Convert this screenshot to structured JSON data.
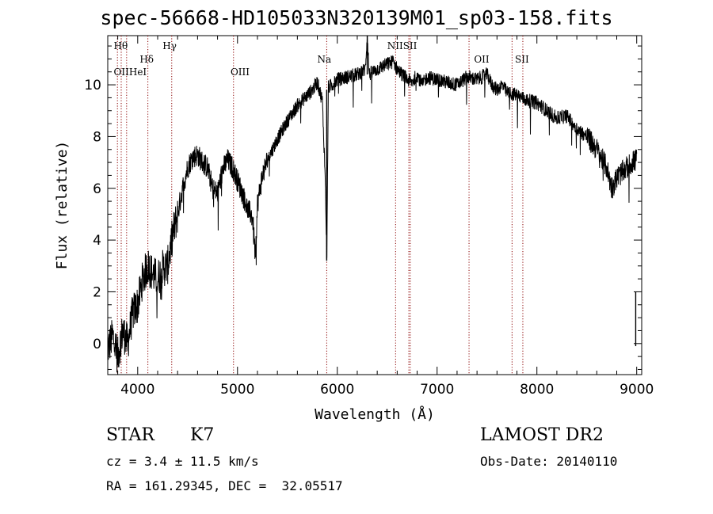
{
  "chart_data": {
    "type": "line",
    "title": "spec-56668-HD105033N320139M01_sp03-158.fits",
    "xlabel": "Wavelength (Å)",
    "ylabel": "Flux (relative)",
    "xlim": [
      3700,
      9050
    ],
    "ylim": [
      -1.2,
      11.9
    ],
    "x_ticks": [
      4000,
      5000,
      6000,
      7000,
      8000,
      9000
    ],
    "y_ticks": [
      0,
      2,
      4,
      6,
      8,
      10
    ],
    "grid": false,
    "series": [
      {
        "x": [
          3700,
          3750,
          3800,
          3850,
          3900,
          3950,
          4000,
          4050,
          4100,
          4150,
          4200,
          4250,
          4300,
          4350,
          4400,
          4450,
          4500,
          4550,
          4600,
          4650,
          4700,
          4750,
          4800,
          4850,
          4900,
          4950,
          5000,
          5050,
          5100,
          5150,
          5180,
          5200,
          5250,
          5300,
          5400,
          5500,
          5600,
          5700,
          5750,
          5800,
          5850,
          5880,
          5895,
          5910,
          5950,
          6000,
          6100,
          6200,
          6280,
          6300,
          6320,
          6400,
          6500,
          6560,
          6600,
          6650,
          6700,
          6750,
          6800,
          6850,
          6900,
          7000,
          7100,
          7200,
          7300,
          7400,
          7500,
          7550,
          7600,
          7650,
          7700,
          7800,
          7850,
          7900,
          8000,
          8100,
          8200,
          8300,
          8400,
          8500,
          8600,
          8700,
          8750,
          8800,
          8850,
          8900,
          8950,
          9000
        ],
        "y": [
          -0.2,
          0.3,
          -0.5,
          0.5,
          0.0,
          1.2,
          1.5,
          2.5,
          3.0,
          2.7,
          2.5,
          2.9,
          3.0,
          4.2,
          5.0,
          6.0,
          6.8,
          7.2,
          7.3,
          7.0,
          6.8,
          6.0,
          5.8,
          6.7,
          7.1,
          6.8,
          6.3,
          5.8,
          5.2,
          4.9,
          3.3,
          5.4,
          6.5,
          7.1,
          7.9,
          8.6,
          9.2,
          9.6,
          9.8,
          10.1,
          9.4,
          6.3,
          3.2,
          9.9,
          10.0,
          10.2,
          10.3,
          10.4,
          10.6,
          11.9,
          10.4,
          10.6,
          10.8,
          10.9,
          10.6,
          10.4,
          10.2,
          10.1,
          10.4,
          10.0,
          10.3,
          10.2,
          10.1,
          10.0,
          10.3,
          10.2,
          10.4,
          10.0,
          9.8,
          10.0,
          9.7,
          9.6,
          9.5,
          9.4,
          9.3,
          9.0,
          8.7,
          8.8,
          8.3,
          8.0,
          7.5,
          6.8,
          6.0,
          6.4,
          6.6,
          6.8,
          7.0,
          7.1
        ]
      }
    ],
    "annotations": [
      "Hθ",
      "OIIHeI",
      "Hδ",
      "Hγ",
      "OIII",
      "Na",
      "NIISII",
      "OII",
      "SII"
    ]
  },
  "info": {
    "object_type": "STAR",
    "subclass": "K7",
    "cz": "cz = 3.4 ± 11.5 km/s",
    "coords": "RA = 161.29345, DEC =  32.05517",
    "survey": "LAMOST DR2",
    "obs_date": "Obs-Date: 20140110"
  }
}
